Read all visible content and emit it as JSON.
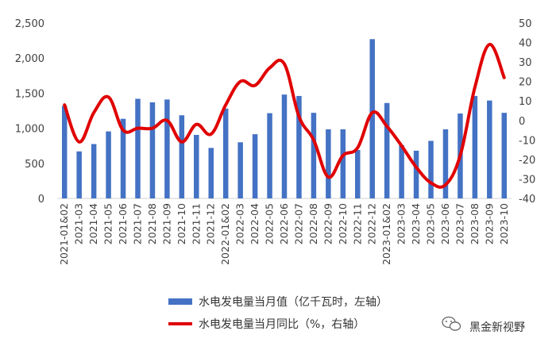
{
  "chart_data": {
    "type": "bar+line",
    "title": "",
    "categories": [
      "2021-01&02",
      "2021-03",
      "2021-04",
      "2021-05",
      "2021-06",
      "2021-07",
      "2021-08",
      "2021-09",
      "2021-10",
      "2021-11",
      "2021-12",
      "2022-01&02",
      "2022-03",
      "2022-04",
      "2022-05",
      "2022-06",
      "2022-07",
      "2022-08",
      "2022-09",
      "2022-10",
      "2022-11",
      "2022-12",
      "2023-01&02",
      "2023-03",
      "2023-04",
      "2023-05",
      "2023-06",
      "2023-07",
      "2023-08",
      "2023-09",
      "2023-10"
    ],
    "series": [
      {
        "name": "水电发电量当月值（亿千瓦时，左轴）",
        "kind": "bar",
        "axis": "left",
        "color": "#4472C4",
        "values": [
          1320,
          670,
          775,
          955,
          1135,
          1420,
          1370,
          1410,
          1185,
          905,
          720,
          1280,
          800,
          915,
          1215,
          1480,
          1460,
          1220,
          985,
          985,
          690,
          2270,
          1360,
          760,
          680,
          820,
          985,
          1210,
          1460,
          1395,
          1220
        ]
      },
      {
        "name": "水电发电量当月同比（%，右轴）",
        "kind": "line",
        "axis": "right",
        "color": "#E00000",
        "values": [
          8,
          -11,
          4,
          12,
          -5,
          -4,
          -4,
          0,
          -11,
          -2,
          -7,
          8,
          20,
          18,
          27,
          29,
          2,
          -10,
          -29,
          -18,
          -14,
          4,
          -3,
          -13,
          -24,
          -32,
          -33,
          -18,
          17,
          39,
          22
        ]
      }
    ],
    "y_left": {
      "ylim": [
        0,
        2500
      ],
      "ticks": [
        "0",
        "500",
        "1,000",
        "1,500",
        "2,000",
        "2,500"
      ]
    },
    "y_right": {
      "ylim": [
        -40,
        50
      ],
      "ticks": [
        "-40",
        "-30",
        "-20",
        "-10",
        "0",
        "10",
        "20",
        "30",
        "40",
        "50"
      ]
    },
    "grid": false,
    "legend_position": "bottom"
  },
  "watermark": {
    "icon": "wechat-icon",
    "text": "黑金新视野"
  }
}
